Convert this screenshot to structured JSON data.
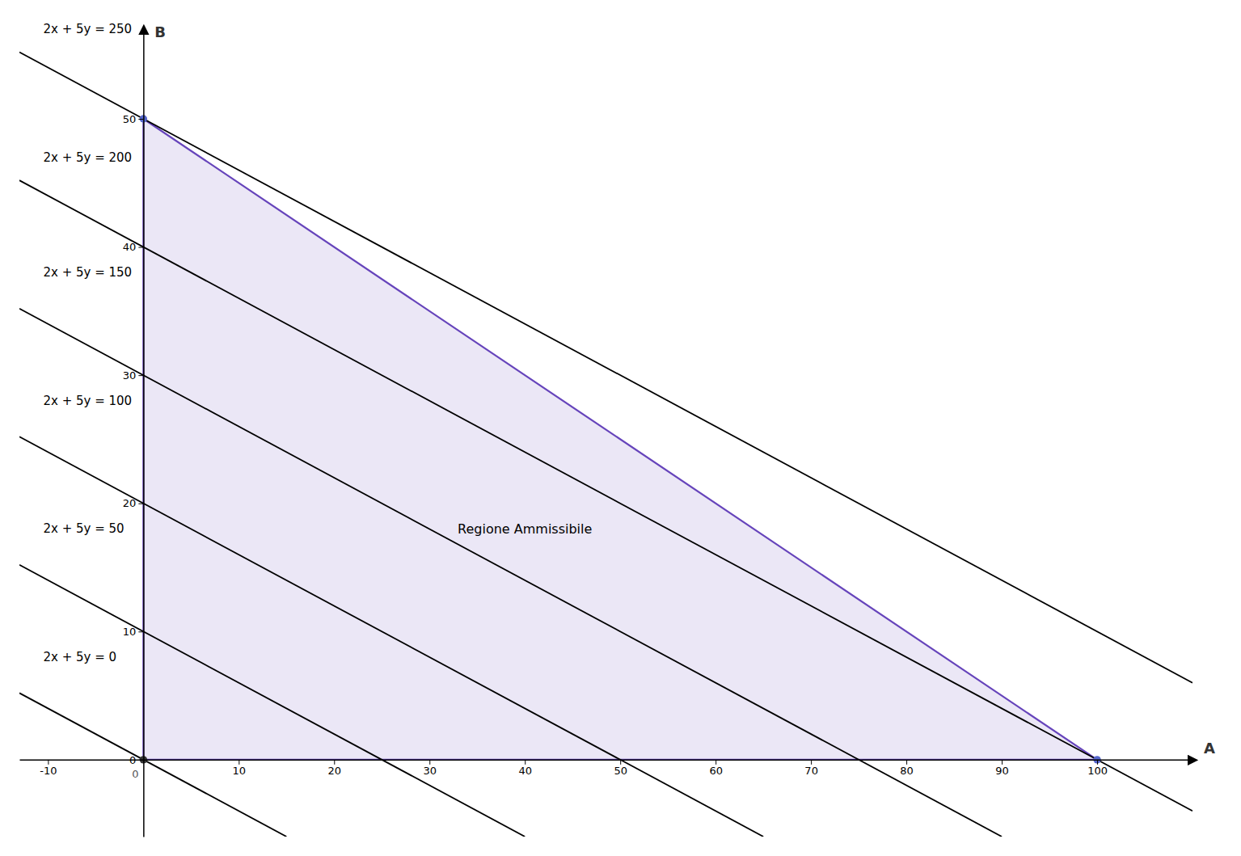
{
  "chart_data": {
    "type": "line",
    "xlabel": "A",
    "ylabel": "B",
    "xlim": [
      -13,
      110
    ],
    "ylim": [
      -6,
      57
    ],
    "xticks": [
      -10,
      10,
      20,
      30,
      40,
      50,
      60,
      70,
      80,
      90,
      100
    ],
    "yticks": [
      0,
      10,
      20,
      30,
      40,
      50
    ],
    "series": [
      {
        "type": "polygon",
        "color": "#6644bb",
        "x": [
          0,
          0,
          100
        ],
        "values": [
          0,
          50,
          0
        ]
      },
      {
        "type": "line",
        "color": "#000000",
        "x": [
          -13,
          15
        ],
        "values": [
          5.2,
          -6
        ]
      },
      {
        "type": "line",
        "color": "#000000",
        "x": [
          -13,
          40
        ],
        "values": [
          15.2,
          -6
        ]
      },
      {
        "type": "line",
        "color": "#000000",
        "x": [
          -13,
          65
        ],
        "values": [
          25.2,
          -6
        ]
      },
      {
        "type": "line",
        "color": "#000000",
        "x": [
          -13,
          90
        ],
        "values": [
          35.2,
          -6
        ]
      },
      {
        "type": "line",
        "color": "#000000",
        "x": [
          -13,
          110
        ],
        "values": [
          45.2,
          -4
        ]
      },
      {
        "type": "line",
        "color": "#000000",
        "x": [
          -13,
          110
        ],
        "values": [
          55.2,
          6
        ]
      },
      {
        "type": "scatter",
        "marker": "circle",
        "colors": [
          "#333333",
          "#5566cc",
          "#5566cc"
        ],
        "x": [
          0,
          0,
          100
        ],
        "values": [
          0,
          50,
          0
        ]
      }
    ],
    "annotations": [
      {
        "text": "2x + 5y = 0",
        "x": -10.5,
        "y": 8
      },
      {
        "text": "2x + 5y = 50",
        "x": -10.5,
        "y": 18
      },
      {
        "text": "2x + 5y = 100",
        "x": -10.5,
        "y": 28
      },
      {
        "text": "2x + 5y = 150",
        "x": -10.5,
        "y": 38
      },
      {
        "text": "2x + 5y = 200",
        "x": -10.5,
        "y": 47
      },
      {
        "text": "2x + 5y = 250",
        "x": -10.5,
        "y": 57
      },
      {
        "text": "Regione Ammissibile",
        "x": 40,
        "y": 18
      },
      {
        "text": "0",
        "x": -0.5,
        "y": -0.8
      }
    ]
  }
}
